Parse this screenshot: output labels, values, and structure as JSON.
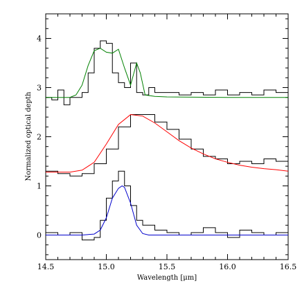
{
  "chart_data": {
    "type": "line",
    "title": "",
    "xlabel": "Wavelength [μm]",
    "ylabel": "Normalized optical depth",
    "xlim": [
      14.5,
      16.5
    ],
    "ylim": [
      -0.5,
      4.5
    ],
    "x_ticks": [
      "14.5",
      "15.0",
      "15.5",
      "16.0",
      "16.5"
    ],
    "y_ticks": [
      "0",
      "1",
      "2",
      "3",
      "4"
    ],
    "grid": false,
    "series": [
      {
        "kind": "observed-histogram",
        "color": "#000000",
        "x": [
          14.5,
          14.55,
          14.6,
          14.65,
          14.7,
          14.75,
          14.8,
          14.85,
          14.9,
          14.95,
          15.0,
          15.05,
          15.1,
          15.15,
          15.2,
          15.25,
          15.3,
          15.35,
          15.4,
          15.5,
          15.6,
          15.7,
          15.8,
          15.9,
          16.0,
          16.1,
          16.2,
          16.3,
          16.4,
          16.5
        ],
        "y": [
          2.8,
          2.75,
          2.95,
          2.65,
          2.8,
          2.8,
          2.9,
          3.3,
          3.8,
          3.95,
          3.9,
          3.3,
          3.1,
          3.0,
          3.5,
          2.9,
          2.85,
          3.0,
          2.9,
          2.9,
          2.85,
          2.9,
          2.85,
          2.95,
          2.85,
          2.9,
          2.85,
          2.95,
          2.9,
          2.85
        ]
      },
      {
        "kind": "model",
        "color": "#008000",
        "x": [
          14.5,
          14.6,
          14.7,
          14.75,
          14.8,
          14.85,
          14.9,
          14.95,
          15.0,
          15.05,
          15.1,
          15.15,
          15.2,
          15.25,
          15.28,
          15.32,
          15.4,
          15.5,
          16.0,
          16.5
        ],
        "y": [
          2.8,
          2.8,
          2.8,
          2.85,
          3.05,
          3.45,
          3.75,
          3.8,
          3.72,
          3.7,
          3.78,
          3.4,
          3.05,
          3.5,
          3.3,
          2.85,
          2.82,
          2.81,
          2.8,
          2.8
        ]
      },
      {
        "kind": "observed-histogram",
        "color": "#000000",
        "x": [
          14.5,
          14.6,
          14.7,
          14.8,
          14.9,
          15.0,
          15.1,
          15.2,
          15.3,
          15.4,
          15.5,
          15.6,
          15.7,
          15.8,
          15.9,
          16.0,
          16.1,
          16.2,
          16.3,
          16.4,
          16.5
        ],
        "y": [
          1.3,
          1.25,
          1.2,
          1.25,
          1.45,
          1.75,
          2.2,
          2.45,
          2.45,
          2.3,
          2.15,
          1.95,
          1.75,
          1.6,
          1.55,
          1.45,
          1.5,
          1.45,
          1.55,
          1.5,
          1.55
        ]
      },
      {
        "kind": "model",
        "color": "#ff0000",
        "x": [
          14.5,
          14.6,
          14.7,
          14.8,
          14.9,
          15.0,
          15.1,
          15.2,
          15.3,
          15.4,
          15.5,
          15.6,
          15.7,
          15.8,
          15.9,
          16.0,
          16.1,
          16.2,
          16.3,
          16.4,
          16.5
        ],
        "y": [
          1.28,
          1.28,
          1.28,
          1.32,
          1.48,
          1.85,
          2.25,
          2.45,
          2.42,
          2.28,
          2.1,
          1.92,
          1.77,
          1.65,
          1.55,
          1.48,
          1.42,
          1.38,
          1.35,
          1.33,
          1.3
        ]
      },
      {
        "kind": "observed-histogram",
        "color": "#000000",
        "x": [
          14.5,
          14.6,
          14.7,
          14.8,
          14.9,
          14.95,
          15.0,
          15.05,
          15.1,
          15.15,
          15.2,
          15.25,
          15.3,
          15.4,
          15.5,
          15.6,
          15.7,
          15.8,
          15.9,
          16.0,
          16.1,
          16.2,
          16.3,
          16.4,
          16.5
        ],
        "y": [
          0.05,
          0.0,
          0.05,
          -0.1,
          -0.05,
          0.3,
          0.75,
          1.1,
          1.3,
          1.0,
          0.6,
          0.3,
          0.2,
          0.1,
          0.05,
          0.0,
          0.05,
          0.15,
          0.05,
          -0.05,
          0.1,
          0.05,
          0.0,
          0.05,
          0.0
        ]
      },
      {
        "kind": "model",
        "color": "#0000cc",
        "x": [
          14.5,
          14.8,
          14.9,
          14.95,
          15.0,
          15.05,
          15.1,
          15.13,
          15.15,
          15.2,
          15.25,
          15.3,
          15.35,
          15.5,
          16.0,
          16.5
        ],
        "y": [
          0.0,
          0.0,
          0.02,
          0.1,
          0.35,
          0.75,
          0.95,
          1.0,
          0.97,
          0.65,
          0.2,
          0.03,
          0.0,
          0.0,
          0.0,
          0.0
        ]
      }
    ]
  }
}
